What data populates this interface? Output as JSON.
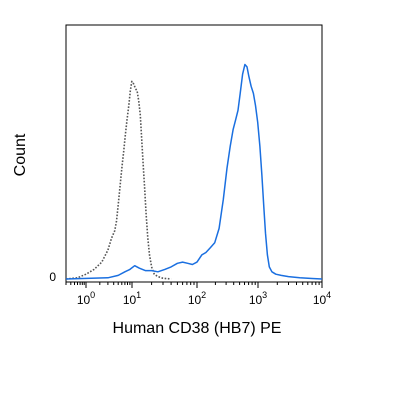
{
  "chart_data": {
    "type": "line",
    "title": "",
    "xlabel": "Human CD38 (HB7) PE",
    "ylabel": "Count",
    "x_scale": "biexponential",
    "x_ticks": [
      {
        "value": 1,
        "base": "10",
        "exp": "0"
      },
      {
        "value": 10,
        "base": "10",
        "exp": "1"
      },
      {
        "value": 100,
        "base": "10",
        "exp": "2"
      },
      {
        "value": 1000,
        "base": "10",
        "exp": "3"
      },
      {
        "value": 10000,
        "base": "10",
        "exp": "4"
      }
    ],
    "y_tick_label": "0",
    "xlim": [
      0.3,
      10000
    ],
    "ylim": [
      0,
      100
    ],
    "grid": false,
    "legend": "none",
    "series": [
      {
        "style": "dotted",
        "color": "#555555",
        "points": [
          [
            0.3,
            0
          ],
          [
            0.6,
            0.5
          ],
          [
            1.0,
            2
          ],
          [
            1.5,
            4
          ],
          [
            2.2,
            7
          ],
          [
            3.0,
            12
          ],
          [
            3.6,
            17
          ],
          [
            4.2,
            20
          ],
          [
            4.6,
            24
          ],
          [
            5.1,
            32
          ],
          [
            5.6,
            40
          ],
          [
            6.1,
            47
          ],
          [
            6.6,
            53
          ],
          [
            7.2,
            60
          ],
          [
            7.8,
            66
          ],
          [
            8.5,
            72
          ],
          [
            9.2,
            78
          ],
          [
            9.9,
            82
          ],
          [
            10.6,
            81
          ],
          [
            11.3,
            79
          ],
          [
            12.0,
            78
          ],
          [
            12.7,
            74
          ],
          [
            13.4,
            68
          ],
          [
            14.1,
            58
          ],
          [
            14.8,
            48
          ],
          [
            15.6,
            38
          ],
          [
            16.5,
            27
          ],
          [
            17.5,
            17
          ],
          [
            18.6,
            10
          ],
          [
            20,
            5
          ],
          [
            22,
            2
          ],
          [
            25,
            1
          ],
          [
            30,
            0.3
          ],
          [
            40,
            0
          ]
        ]
      },
      {
        "style": "solid",
        "color": "#1a6fe0",
        "points": [
          [
            0.3,
            0
          ],
          [
            3,
            0.5
          ],
          [
            5,
            1.5
          ],
          [
            7,
            3
          ],
          [
            9,
            4
          ],
          [
            11,
            5.5
          ],
          [
            13,
            4.5
          ],
          [
            16,
            3.5
          ],
          [
            20,
            3.5
          ],
          [
            25,
            3
          ],
          [
            32,
            4
          ],
          [
            40,
            5
          ],
          [
            50,
            6.5
          ],
          [
            60,
            7
          ],
          [
            72,
            6.5
          ],
          [
            85,
            6
          ],
          [
            100,
            7
          ],
          [
            120,
            10
          ],
          [
            140,
            11
          ],
          [
            165,
            13
          ],
          [
            195,
            15
          ],
          [
            230,
            21
          ],
          [
            270,
            33
          ],
          [
            310,
            46
          ],
          [
            350,
            55
          ],
          [
            390,
            62
          ],
          [
            430,
            66
          ],
          [
            470,
            70
          ],
          [
            510,
            77
          ],
          [
            560,
            85
          ],
          [
            610,
            89
          ],
          [
            660,
            88
          ],
          [
            710,
            84
          ],
          [
            770,
            80
          ],
          [
            840,
            77
          ],
          [
            910,
            72
          ],
          [
            990,
            65
          ],
          [
            1070,
            55
          ],
          [
            1150,
            43
          ],
          [
            1230,
            30
          ],
          [
            1310,
            19
          ],
          [
            1400,
            10
          ],
          [
            1500,
            5
          ],
          [
            1650,
            3
          ],
          [
            1900,
            2
          ],
          [
            2300,
            1.5
          ],
          [
            3000,
            1
          ],
          [
            4500,
            0.5
          ],
          [
            7000,
            0.2
          ],
          [
            10000,
            0
          ]
        ]
      }
    ]
  }
}
